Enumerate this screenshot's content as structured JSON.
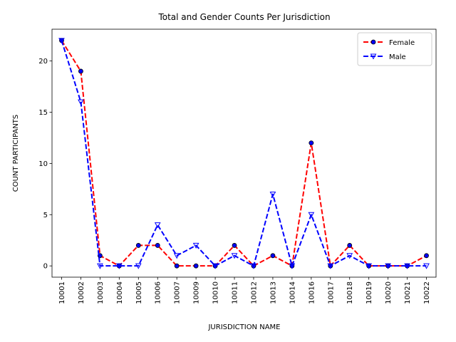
{
  "chart_data": {
    "type": "line",
    "title": "Total and Gender Counts Per Jurisdiction",
    "xlabel": "JURISDICTION NAME",
    "ylabel": "COUNT PARTICIPANTS",
    "categories": [
      "10001",
      "10002",
      "10003",
      "10004",
      "10005",
      "10006",
      "10007",
      "10009",
      "10010",
      "10011",
      "10012",
      "10013",
      "10014",
      "10016",
      "10017",
      "10018",
      "10019",
      "10020",
      "10021",
      "10022"
    ],
    "ylim": [
      -1.1,
      23.1
    ],
    "yticks": [
      0,
      5,
      10,
      15,
      20
    ],
    "grid": false,
    "legend_position": "top-right",
    "series": [
      {
        "name": "Female",
        "color": "#ff0000",
        "marker_color": "#0000ff",
        "marker": "circle",
        "linestyle": "dashed",
        "values": [
          22,
          19,
          1,
          0,
          2,
          2,
          0,
          0,
          0,
          2,
          0,
          1,
          0,
          12,
          0,
          2,
          0,
          0,
          0,
          1
        ]
      },
      {
        "name": "Male",
        "color": "#0000ff",
        "marker_color": "#0000ff",
        "marker": "triangle-down",
        "linestyle": "dashed",
        "values": [
          22,
          16,
          0,
          0,
          0,
          4,
          1,
          2,
          0,
          1,
          0,
          7,
          0,
          5,
          0,
          1,
          0,
          0,
          0,
          0
        ]
      }
    ]
  }
}
